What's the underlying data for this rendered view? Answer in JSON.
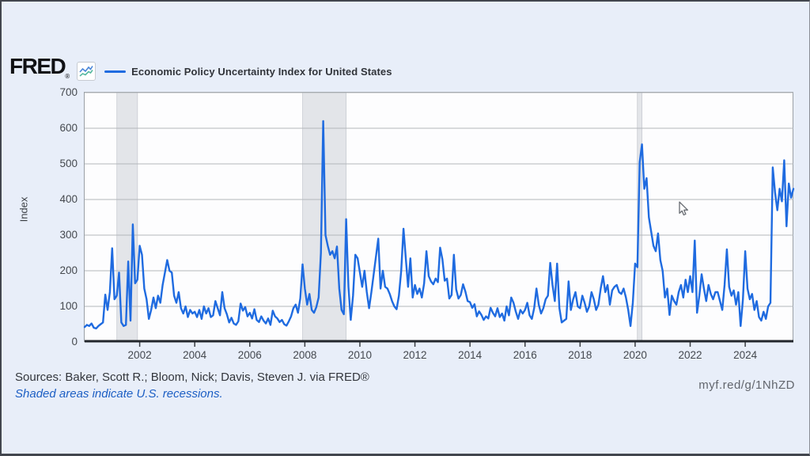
{
  "header": {
    "logo_text": "FRED",
    "registered_mark": "®"
  },
  "chart_data": {
    "type": "line",
    "title": "Economic Policy Uncertainty Index for United States",
    "ylabel": "Index",
    "ylim": [
      0,
      700
    ],
    "yticks": [
      0,
      100,
      200,
      300,
      400,
      500,
      600,
      700
    ],
    "xticks": [
      2002,
      2004,
      2006,
      2008,
      2010,
      2012,
      2014,
      2016,
      2018,
      2020,
      2022,
      2024
    ],
    "x_range": [
      2000.0,
      2025.75
    ],
    "grid": true,
    "legend_position": "top-left",
    "line_color": "#1f6be0",
    "grid_color": "#b3b6bb",
    "axis_color": "#22262c",
    "recession_band_color": "#e3e5e9",
    "recession_band_edge": "#c9ccd2",
    "recessions": [
      {
        "start": 2001.17,
        "end": 2001.92,
        "label": "2001 recession"
      },
      {
        "start": 2007.92,
        "end": 2009.5,
        "label": "2008-09 recession"
      },
      {
        "start": 2020.08,
        "end": 2020.25,
        "label": "2020 recession"
      }
    ],
    "series": [
      {
        "name": "Economic Policy Uncertainty Index for United States",
        "frequency": "monthly",
        "start": "2000-01",
        "end": "2025-10",
        "values": [
          42,
          48,
          45,
          52,
          40,
          38,
          45,
          50,
          55,
          133,
          90,
          140,
          263,
          120,
          130,
          195,
          55,
          45,
          48,
          226,
          60,
          330,
          165,
          175,
          270,
          245,
          150,
          120,
          65,
          90,
          125,
          95,
          130,
          110,
          160,
          195,
          230,
          200,
          195,
          130,
          110,
          140,
          95,
          80,
          100,
          70,
          90,
          80,
          85,
          70,
          90,
          65,
          100,
          80,
          95,
          70,
          75,
          115,
          95,
          75,
          140,
          95,
          78,
          55,
          68,
          52,
          48,
          58,
          108,
          88,
          98,
          72,
          82,
          66,
          92,
          62,
          56,
          72,
          60,
          52,
          66,
          48,
          88,
          72,
          66,
          56,
          62,
          50,
          46,
          58,
          72,
          95,
          105,
          82,
          122,
          218,
          150,
          105,
          135,
          90,
          82,
          98,
          125,
          250,
          620,
          300,
          270,
          245,
          255,
          235,
          268,
          150,
          90,
          78,
          345,
          155,
          62,
          130,
          245,
          235,
          195,
          155,
          200,
          140,
          95,
          140,
          190,
          240,
          290,
          150,
          200,
          155,
          150,
          135,
          115,
          100,
          92,
          130,
          200,
          318,
          235,
          155,
          235,
          125,
          160,
          135,
          150,
          125,
          165,
          255,
          185,
          170,
          162,
          178,
          168,
          265,
          232,
          172,
          178,
          122,
          132,
          245,
          148,
          122,
          132,
          162,
          142,
          115,
          112,
          96,
          106,
          72,
          86,
          76,
          62,
          72,
          66,
          96,
          82,
          72,
          95,
          70,
          80,
          60,
          100,
          75,
          125,
          110,
          85,
          65,
          90,
          80,
          90,
          110,
          75,
          65,
          95,
          150,
          105,
          80,
          95,
          120,
          130,
          222,
          160,
          115,
          220,
          95,
          55,
          60,
          65,
          170,
          90,
          120,
          140,
          100,
          95,
          130,
          110,
          85,
          100,
          140,
          120,
          90,
          105,
          150,
          185,
          140,
          160,
          105,
          145,
          155,
          160,
          140,
          135,
          150,
          125,
          90,
          45,
          110,
          220,
          210,
          505,
          555,
          430,
          460,
          350,
          310,
          270,
          255,
          305,
          230,
          200,
          125,
          150,
          76,
          130,
          115,
          105,
          140,
          160,
          125,
          175,
          140,
          185,
          140,
          285,
          82,
          130,
          190,
          150,
          115,
          160,
          135,
          120,
          140,
          140,
          115,
          90,
          160,
          260,
          155,
          130,
          145,
          105,
          140,
          45,
          120,
          255,
          150,
          120,
          135,
          90,
          115,
          70,
          60,
          85,
          65,
          100,
          110,
          490,
          420,
          370,
          430,
          395,
          510,
          325,
          445,
          405,
          430
        ]
      }
    ]
  },
  "footer": {
    "sources": "Sources: Baker, Scott R.; Bloom, Nick; Davis, Steven J. via FRED®",
    "recession_note": "Shaded areas indicate U.S. recessions.",
    "short_url": "myf.red/g/1NhZD"
  }
}
